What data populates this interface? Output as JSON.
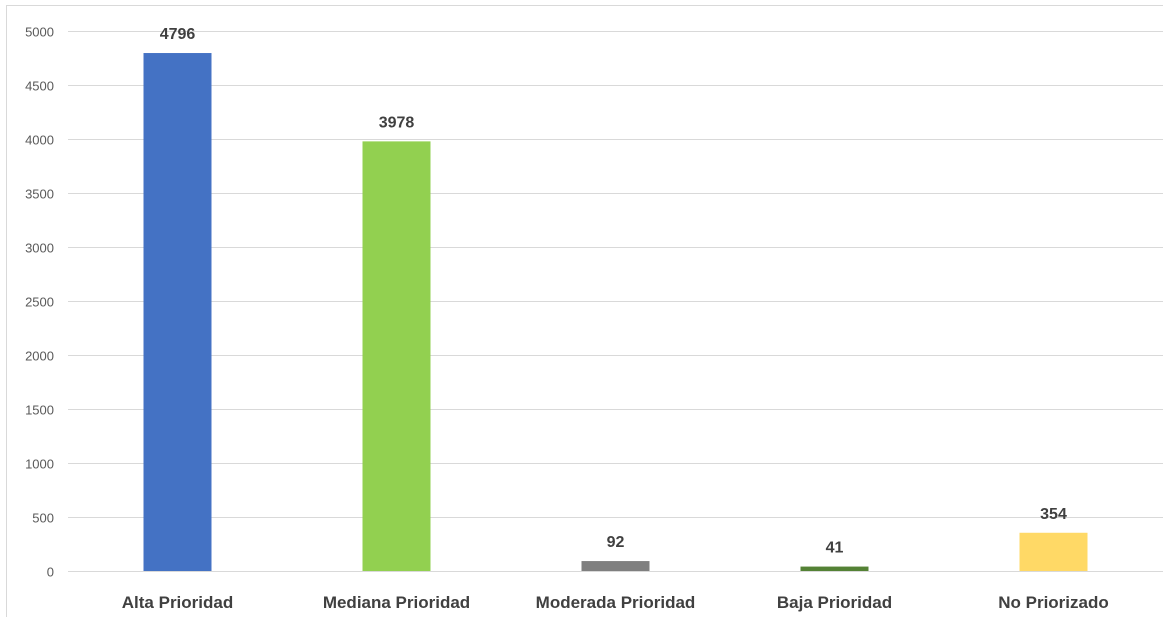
{
  "chart_data": {
    "type": "bar",
    "title": "",
    "xlabel": "",
    "ylabel": "",
    "categories": [
      "Alta Prioridad",
      "Mediana Prioridad",
      "Moderada Prioridad",
      "Baja Prioridad",
      "No Priorizado"
    ],
    "values": [
      4796,
      3978,
      92,
      41,
      354
    ],
    "data_labels": [
      "4796",
      "3978",
      "92",
      "41",
      "354"
    ],
    "colors": [
      "#4472c4",
      "#92d050",
      "#7f7f7f",
      "#548235",
      "#ffd966"
    ],
    "ylim": [
      0,
      5000
    ],
    "yticks": [
      0,
      500,
      1000,
      1500,
      2000,
      2500,
      3000,
      3500,
      4000,
      4500,
      5000
    ],
    "ytick_labels": [
      "0",
      "500",
      "1000",
      "1500",
      "2000",
      "2500",
      "3000",
      "3500",
      "4000",
      "4500",
      "5000"
    ],
    "grid": true,
    "legend": "none"
  }
}
